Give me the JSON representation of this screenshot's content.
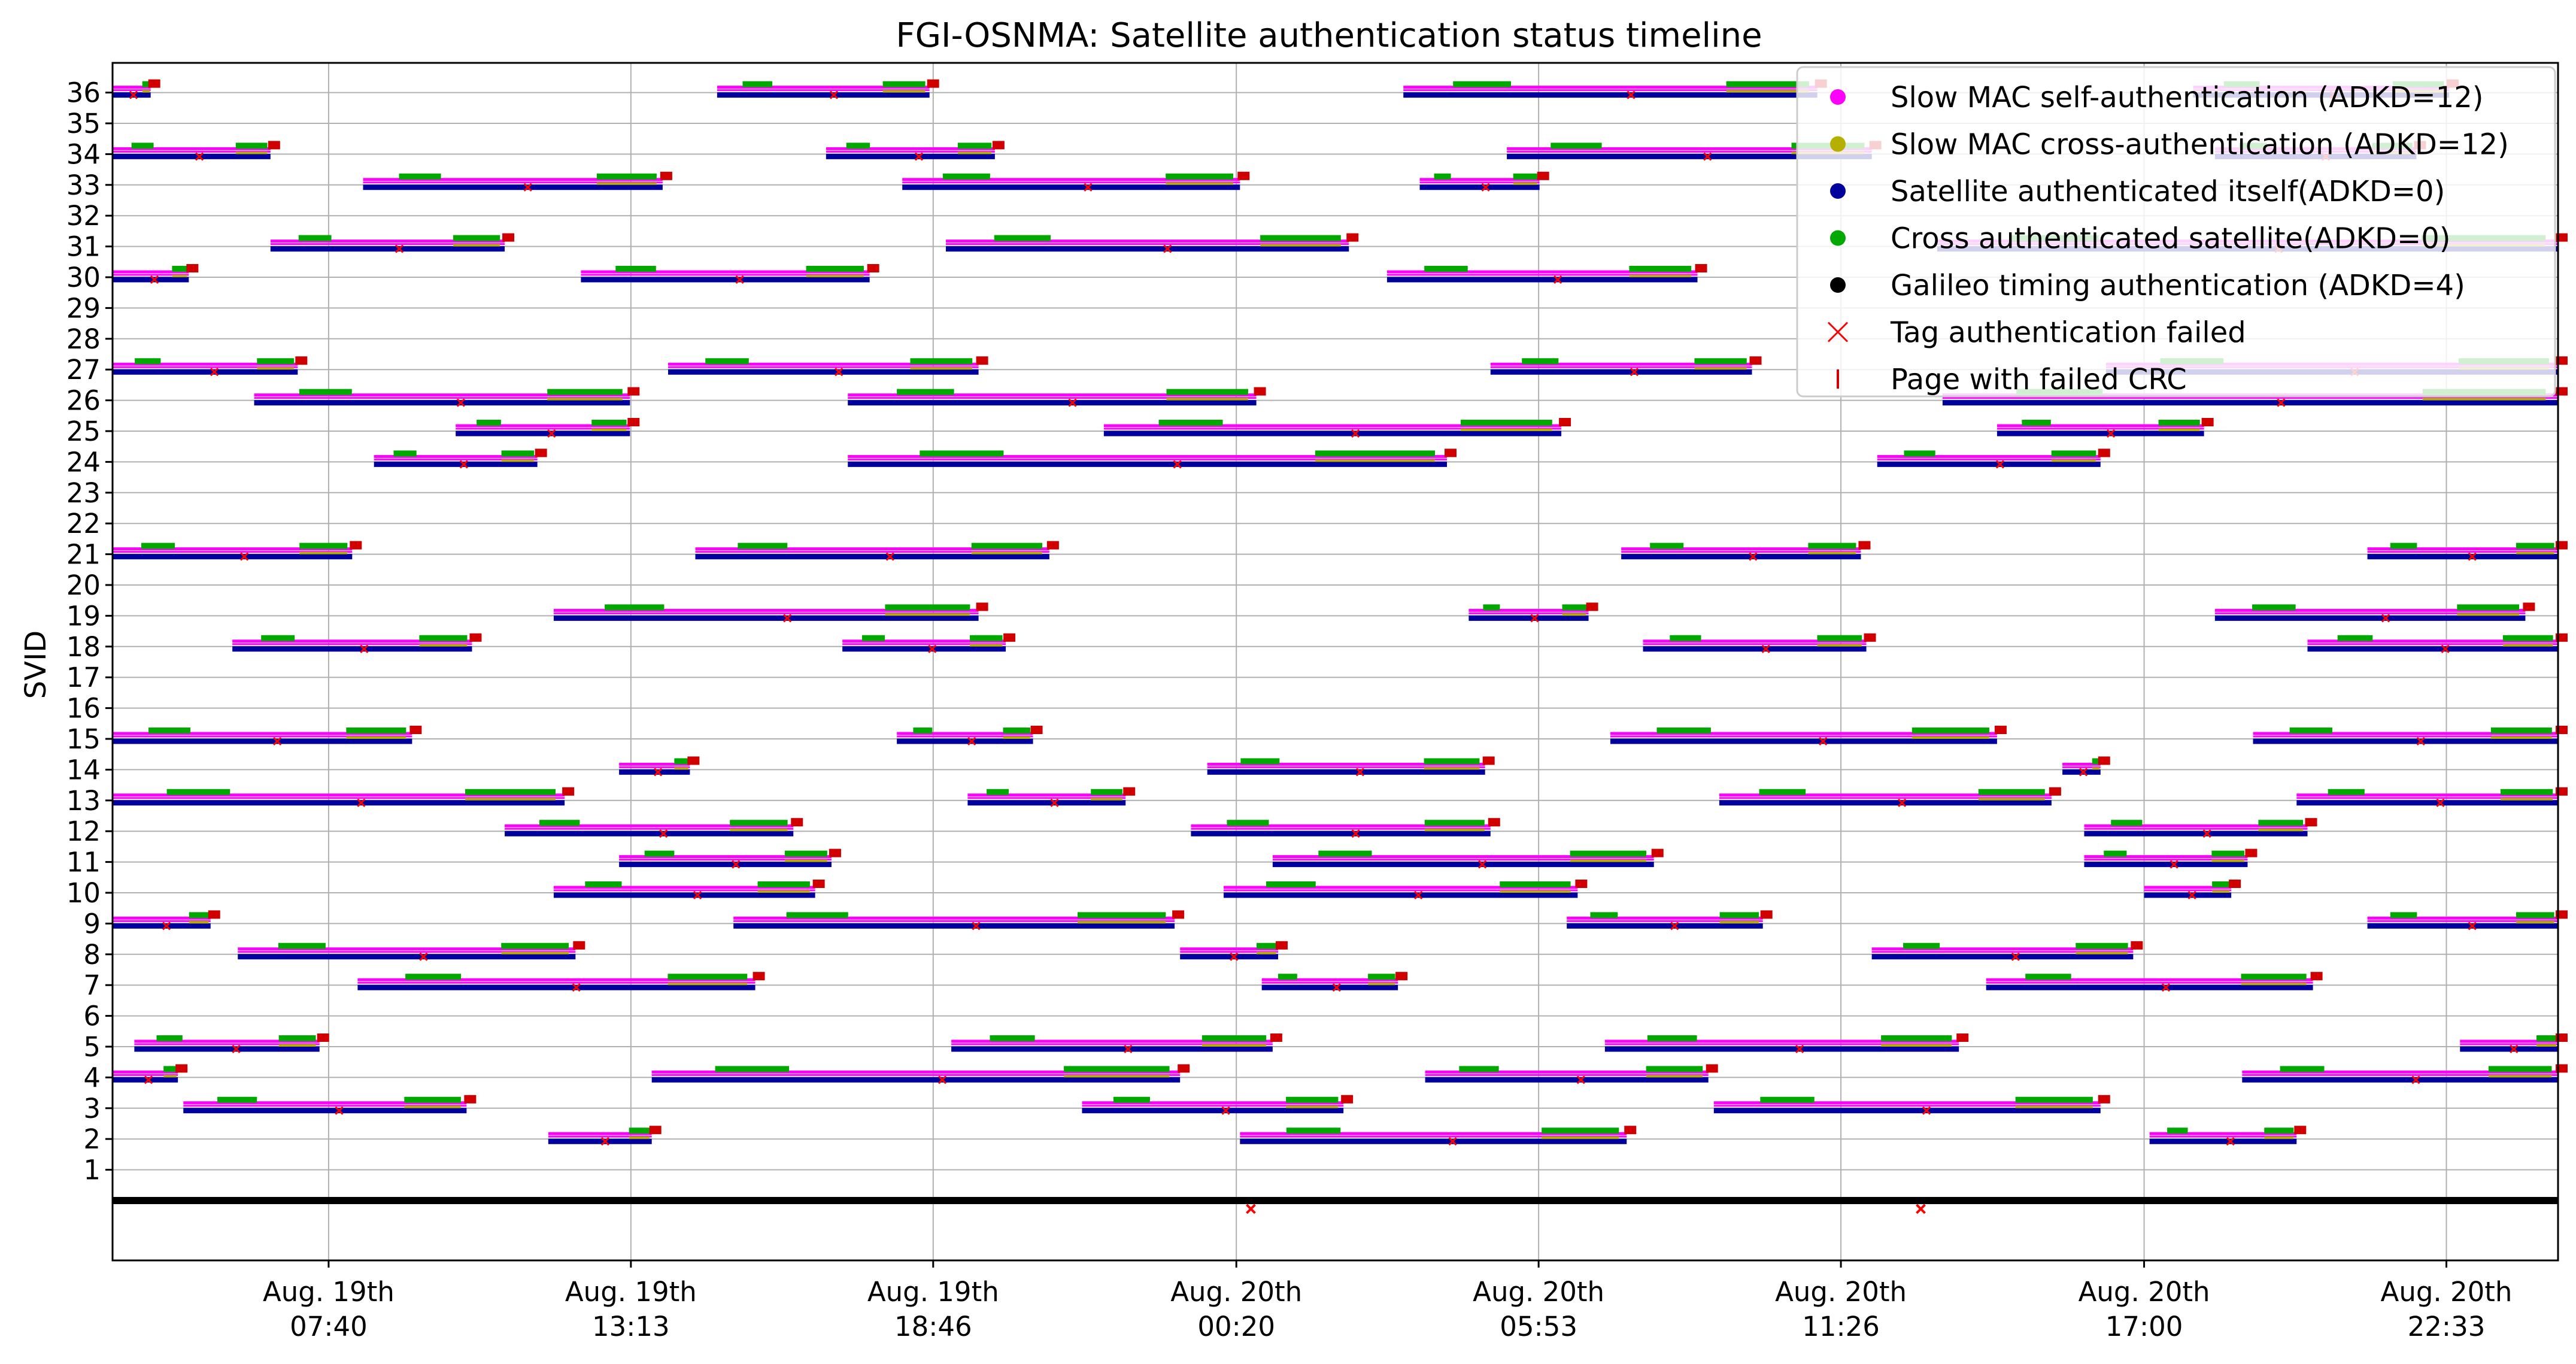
{
  "chart_data": {
    "type": "timeline",
    "title": "FGI-OSNMA: Satellite authentication status timeline",
    "ylabel": "SVID",
    "xlabel": "",
    "grid": true,
    "legend_position": "top-right",
    "x_ticks": [
      {
        "line1": "Aug. 19th",
        "line2": "07:40"
      },
      {
        "line1": "Aug. 19th",
        "line2": "13:13"
      },
      {
        "line1": "Aug. 19th",
        "line2": "18:46"
      },
      {
        "line1": "Aug. 20th",
        "line2": "00:20"
      },
      {
        "line1": "Aug. 20th",
        "line2": "05:53"
      },
      {
        "line1": "Aug. 20th",
        "line2": "11:26"
      },
      {
        "line1": "Aug. 20th",
        "line2": "17:00"
      },
      {
        "line1": "Aug. 20th",
        "line2": "22:33"
      }
    ],
    "x_tick_hours": [
      7.667,
      13.217,
      18.767,
      24.333,
      29.883,
      35.433,
      41.0,
      46.55
    ],
    "x_range_hours": [
      3.7,
      48.6
    ],
    "y_ticks": [
      1,
      2,
      3,
      4,
      5,
      6,
      7,
      8,
      9,
      10,
      11,
      12,
      13,
      14,
      15,
      16,
      17,
      18,
      19,
      20,
      21,
      22,
      23,
      24,
      25,
      26,
      27,
      28,
      29,
      30,
      31,
      32,
      33,
      34,
      35,
      36
    ],
    "colors": {
      "self_auth": "#ff00ff",
      "cross_auth_slow": "#b5b000",
      "self_auth_adkd0": "#00009c",
      "cross_auth_adkd0": "#00a800",
      "timing": "#000000",
      "tag_failed": "#ff0000",
      "crc_failed": "#d00000"
    },
    "legend": [
      {
        "key": "self_auth",
        "label": "Slow MAC self-authentication (ADKD=12)",
        "marker": "dot"
      },
      {
        "key": "cross_auth_slow",
        "label": "Slow MAC cross-authentication (ADKD=12)",
        "marker": "dot"
      },
      {
        "key": "self_auth_adkd0",
        "label": "Satellite authenticated itself(ADKD=0)",
        "marker": "dot"
      },
      {
        "key": "cross_auth_adkd0",
        "label": "Cross authenticated satellite(ADKD=0)",
        "marker": "dot"
      },
      {
        "key": "timing",
        "label": "Galileo timing authentication (ADKD=4)",
        "marker": "dot"
      },
      {
        "key": "tag_failed",
        "label": "Tag authentication failed",
        "marker": "x"
      },
      {
        "key": "crc_failed",
        "label": "Page with failed CRC",
        "marker": "bar"
      }
    ],
    "timing_line": {
      "y": 0,
      "x_start": 3.7,
      "x_end": 48.6
    },
    "timing_failures_hours": [
      24.6,
      36.9
    ],
    "visibility": [
      {
        "svid": 36,
        "intervals": [
          [
            3.7,
            4.4
          ],
          [
            14.8,
            18.7
          ],
          [
            27.4,
            35.0
          ],
          [
            41.9,
            46.6
          ]
        ]
      },
      {
        "svid": 34,
        "intervals": [
          [
            3.7,
            6.6
          ],
          [
            16.8,
            19.9
          ],
          [
            29.3,
            36.0
          ],
          [
            42.3,
            46.0
          ]
        ]
      },
      {
        "svid": 33,
        "intervals": [
          [
            8.3,
            13.8
          ],
          [
            18.2,
            24.4
          ],
          [
            27.7,
            29.9
          ]
        ]
      },
      {
        "svid": 31,
        "intervals": [
          [
            6.6,
            10.9
          ],
          [
            19.0,
            26.4
          ],
          [
            37.2,
            48.6
          ]
        ]
      },
      {
        "svid": 30,
        "intervals": [
          [
            3.7,
            5.1
          ],
          [
            12.3,
            17.6
          ],
          [
            27.1,
            32.8
          ]
        ]
      },
      {
        "svid": 27,
        "intervals": [
          [
            3.7,
            7.1
          ],
          [
            13.9,
            19.6
          ],
          [
            29.0,
            33.8
          ],
          [
            40.3,
            48.6
          ]
        ]
      },
      {
        "svid": 26,
        "intervals": [
          [
            6.3,
            13.2
          ],
          [
            17.2,
            24.7
          ],
          [
            37.3,
            48.6
          ]
        ]
      },
      {
        "svid": 25,
        "intervals": [
          [
            10.0,
            13.2
          ],
          [
            21.9,
            30.3
          ],
          [
            38.3,
            42.1
          ]
        ]
      },
      {
        "svid": 24,
        "intervals": [
          [
            8.5,
            11.5
          ],
          [
            17.2,
            28.2
          ],
          [
            36.1,
            40.2
          ]
        ]
      },
      {
        "svid": 21,
        "intervals": [
          [
            3.7,
            8.1
          ],
          [
            14.4,
            20.9
          ],
          [
            31.4,
            35.8
          ],
          [
            45.1,
            48.6
          ]
        ]
      },
      {
        "svid": 19,
        "intervals": [
          [
            11.8,
            19.6
          ],
          [
            28.6,
            30.8
          ],
          [
            42.3,
            48.0
          ]
        ]
      },
      {
        "svid": 18,
        "intervals": [
          [
            5.9,
            10.3
          ],
          [
            17.1,
            20.1
          ],
          [
            31.8,
            35.9
          ],
          [
            44.0,
            48.6
          ]
        ]
      },
      {
        "svid": 15,
        "intervals": [
          [
            3.7,
            9.2
          ],
          [
            18.1,
            20.6
          ],
          [
            31.2,
            38.3
          ],
          [
            43.0,
            48.6
          ]
        ]
      },
      {
        "svid": 14,
        "intervals": [
          [
            13.0,
            14.3
          ],
          [
            23.8,
            28.9
          ],
          [
            39.5,
            40.2
          ]
        ]
      },
      {
        "svid": 13,
        "intervals": [
          [
            3.7,
            12.0
          ],
          [
            19.4,
            22.3
          ],
          [
            33.2,
            39.3
          ],
          [
            43.8,
            48.6
          ]
        ]
      },
      {
        "svid": 12,
        "intervals": [
          [
            10.9,
            16.2
          ],
          [
            23.5,
            29.0
          ],
          [
            39.9,
            44.0
          ]
        ]
      },
      {
        "svid": 11,
        "intervals": [
          [
            13.0,
            16.9
          ],
          [
            25.0,
            32.0
          ],
          [
            39.9,
            42.9
          ]
        ]
      },
      {
        "svid": 10,
        "intervals": [
          [
            11.8,
            16.6
          ],
          [
            24.1,
            30.6
          ],
          [
            41.0,
            42.6
          ]
        ]
      },
      {
        "svid": 9,
        "intervals": [
          [
            3.7,
            5.5
          ],
          [
            15.1,
            23.2
          ],
          [
            30.4,
            34.0
          ],
          [
            45.1,
            48.6
          ]
        ]
      },
      {
        "svid": 8,
        "intervals": [
          [
            6.0,
            12.2
          ],
          [
            23.3,
            25.1
          ],
          [
            36.0,
            40.8
          ]
        ]
      },
      {
        "svid": 7,
        "intervals": [
          [
            8.2,
            15.5
          ],
          [
            24.8,
            27.3
          ],
          [
            38.1,
            44.1
          ]
        ]
      },
      {
        "svid": 5,
        "intervals": [
          [
            4.1,
            7.5
          ],
          [
            19.1,
            25.0
          ],
          [
            31.1,
            37.6
          ],
          [
            46.8,
            48.6
          ]
        ]
      },
      {
        "svid": 4,
        "intervals": [
          [
            3.7,
            4.9
          ],
          [
            13.6,
            23.3
          ],
          [
            27.8,
            33.0
          ],
          [
            42.8,
            48.6
          ]
        ]
      },
      {
        "svid": 3,
        "intervals": [
          [
            5.0,
            10.2
          ],
          [
            21.5,
            26.3
          ],
          [
            33.1,
            40.2
          ]
        ]
      },
      {
        "svid": 2,
        "intervals": [
          [
            11.7,
            13.6
          ],
          [
            24.4,
            31.5
          ],
          [
            41.1,
            43.8
          ]
        ]
      }
    ]
  }
}
